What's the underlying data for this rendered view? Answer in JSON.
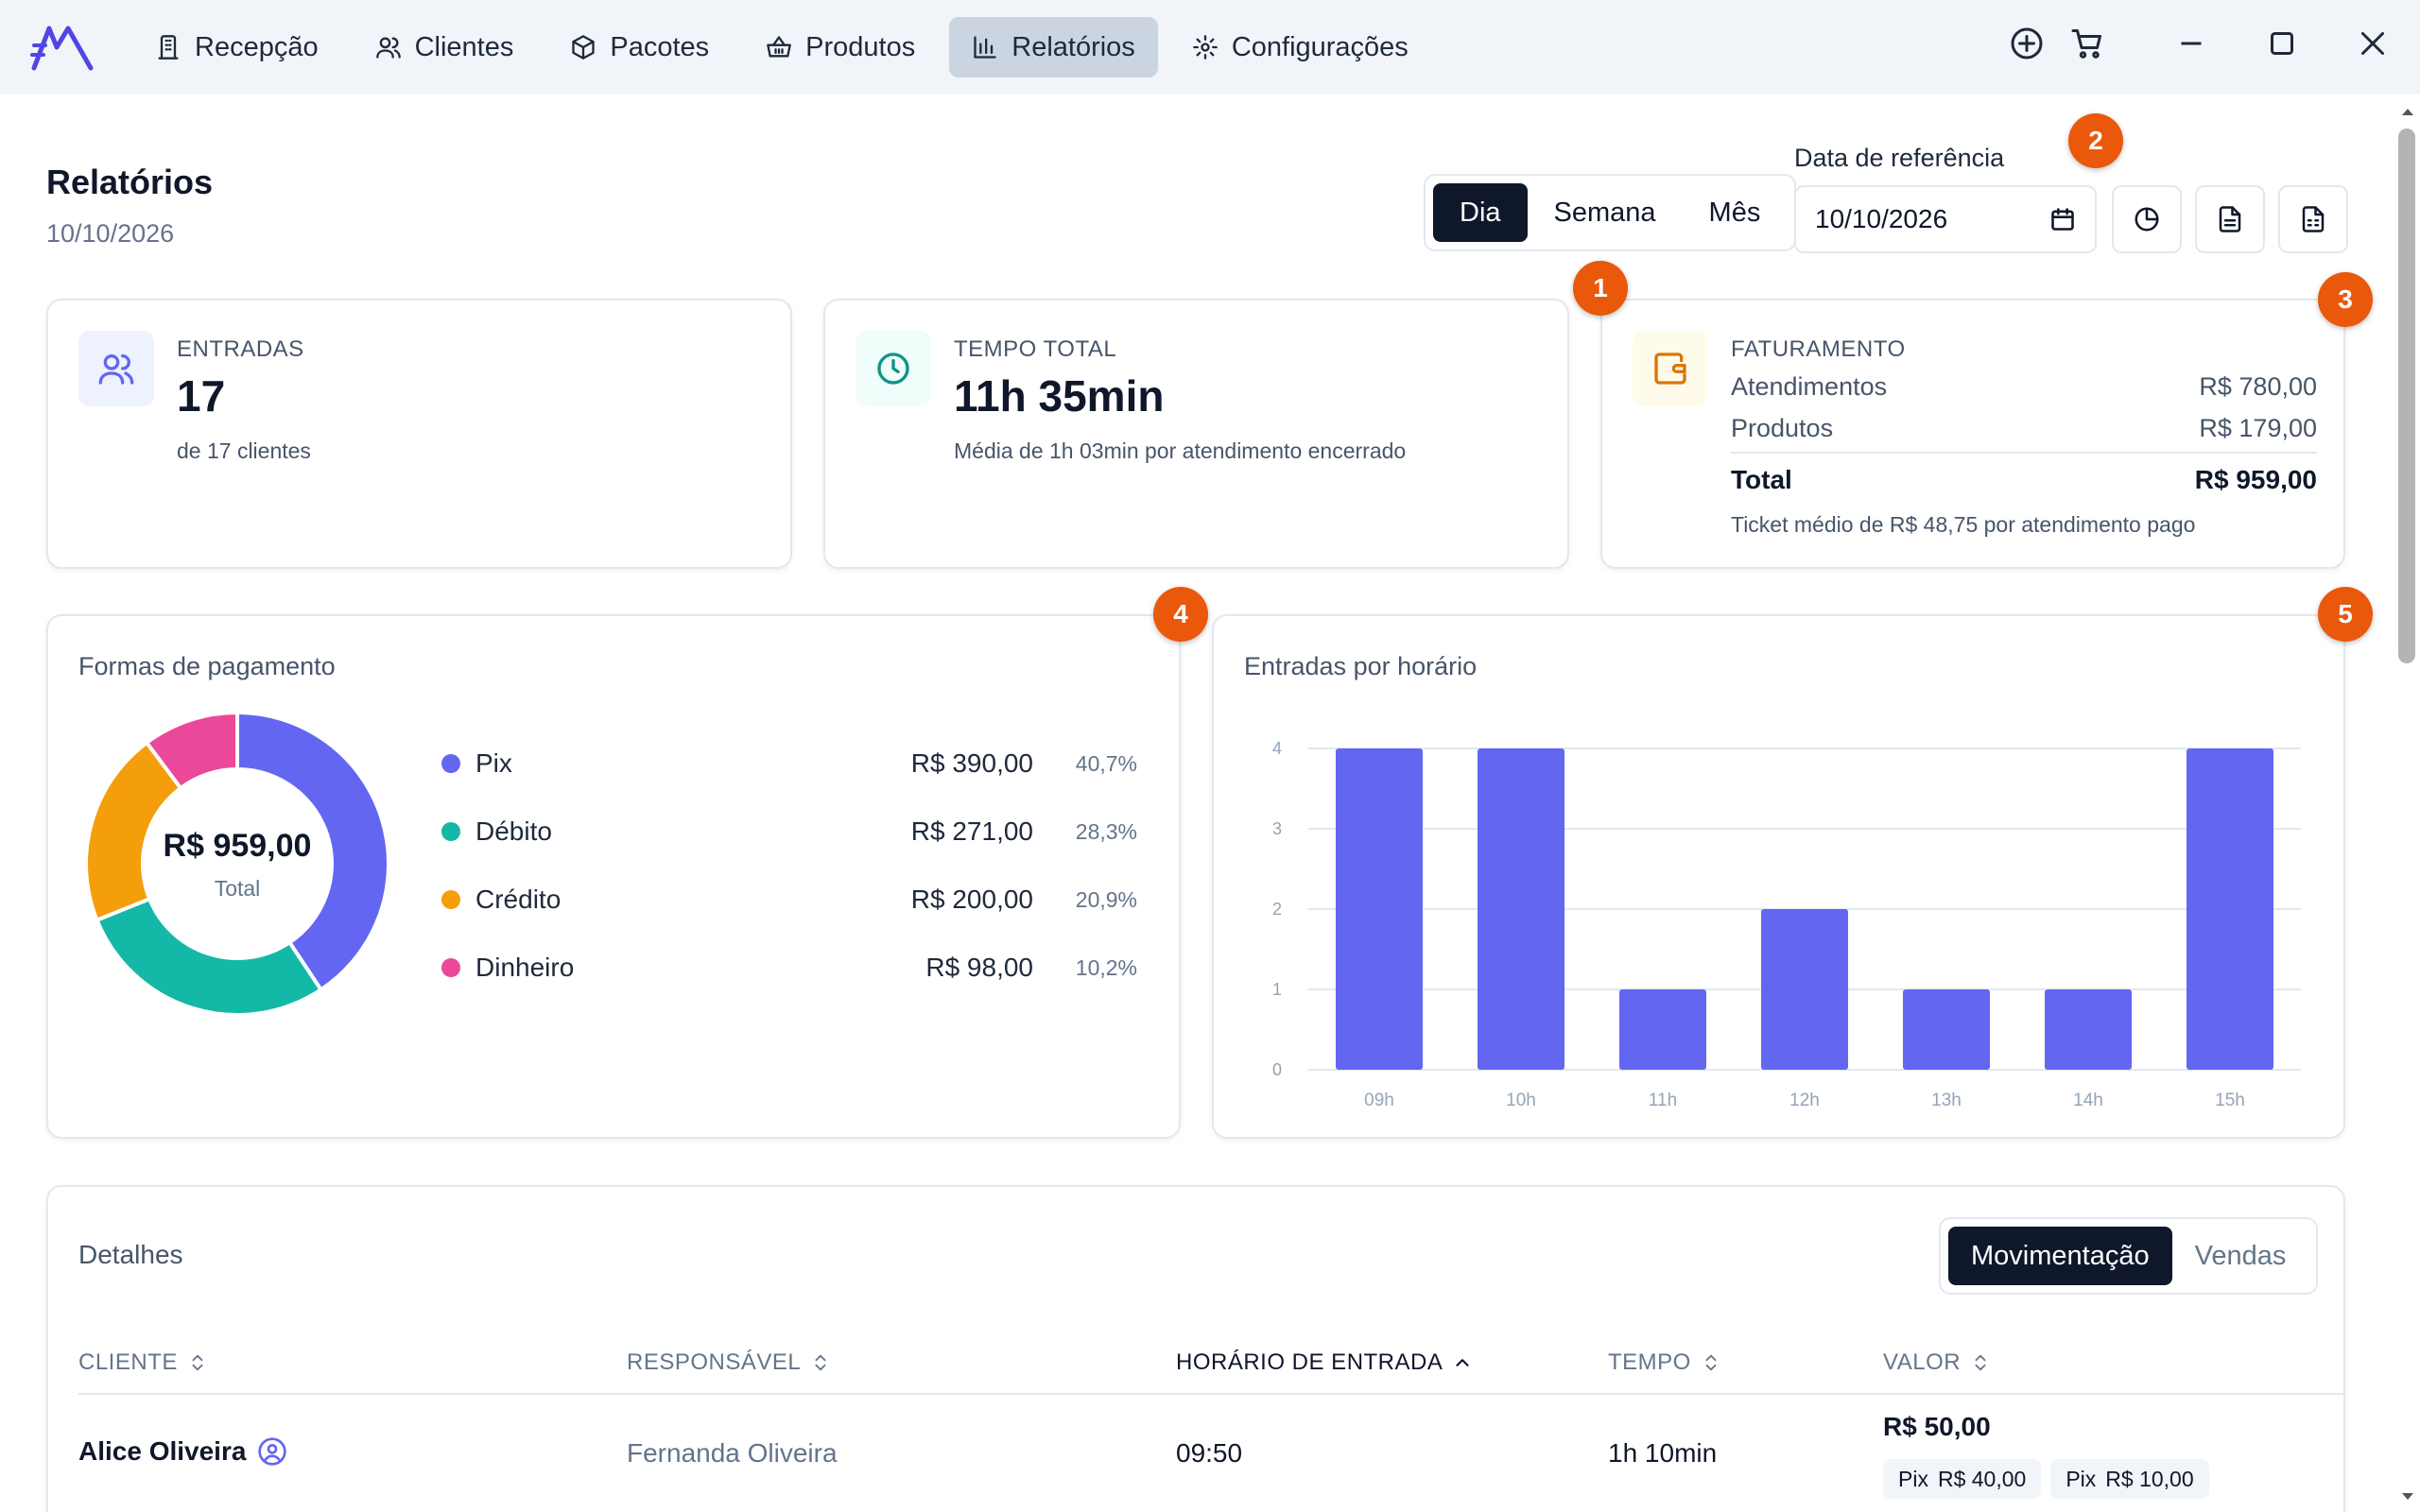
{
  "nav": {
    "items": [
      {
        "label": "Recepção",
        "icon": "building-icon"
      },
      {
        "label": "Clientes",
        "icon": "users-icon"
      },
      {
        "label": "Pacotes",
        "icon": "package-icon"
      },
      {
        "label": "Produtos",
        "icon": "basket-icon"
      },
      {
        "label": "Relatórios",
        "icon": "bar-chart-icon",
        "active": true
      },
      {
        "label": "Configurações",
        "icon": "gear-icon"
      }
    ]
  },
  "header": {
    "title": "Relatórios",
    "date": "10/10/2026",
    "period_tabs": [
      "Dia",
      "Semana",
      "Mês"
    ],
    "active_period": "Dia",
    "ref_label": "Data de referência",
    "ref_date": "10/10/2026"
  },
  "badges": [
    "1",
    "2",
    "3",
    "4",
    "5"
  ],
  "stats": {
    "entradas": {
      "label": "ENTRADAS",
      "value": "17",
      "sub": "de 17 clientes"
    },
    "tempo": {
      "label": "TEMPO TOTAL",
      "value": "11h 35min",
      "sub": "Média de 1h 03min por atendimento encerrado"
    },
    "faturamento": {
      "label": "FATURAMENTO",
      "rows": [
        {
          "label": "Atendimentos",
          "value": "R$ 780,00"
        },
        {
          "label": "Produtos",
          "value": "R$ 179,00"
        }
      ],
      "total_label": "Total",
      "total_value": "R$ 959,00",
      "sub": "Ticket médio de R$ 48,75 por atendimento pago"
    }
  },
  "payments": {
    "title": "Formas de pagamento",
    "center_value": "R$ 959,00",
    "center_label": "Total",
    "items": [
      {
        "name": "Pix",
        "value": "R$ 390,00",
        "pct": "40,7%",
        "amount": 390,
        "color": "#6366f1"
      },
      {
        "name": "Débito",
        "value": "R$ 271,00",
        "pct": "28,3%",
        "amount": 271,
        "color": "#14b8a6"
      },
      {
        "name": "Crédito",
        "value": "R$ 200,00",
        "pct": "20,9%",
        "amount": 200,
        "color": "#f59e0b"
      },
      {
        "name": "Dinheiro",
        "value": "R$ 98,00",
        "pct": "10,2%",
        "amount": 98,
        "color": "#ec4899"
      }
    ]
  },
  "chart_data": {
    "type": "bar",
    "title": "Entradas por horário",
    "categories": [
      "09h",
      "10h",
      "11h",
      "12h",
      "13h",
      "14h",
      "15h"
    ],
    "values": [
      4,
      4,
      1,
      2,
      1,
      1,
      4
    ],
    "yticks": [
      "0",
      "1",
      "2",
      "3",
      "4"
    ],
    "ylim": [
      0,
      4
    ],
    "grid": true,
    "color": "#6366f1"
  },
  "details": {
    "title": "Detalhes",
    "tabs": [
      "Movimentação",
      "Vendas"
    ],
    "active_tab": "Movimentação",
    "columns": [
      "CLIENTE",
      "RESPONSÁVEL",
      "HORÁRIO DE ENTRADA",
      "TEMPO",
      "VALOR"
    ],
    "rows": [
      {
        "cliente": "Alice Oliveira",
        "responsavel": "Fernanda Oliveira",
        "horario": "09:50",
        "tempo": "1h 10min",
        "valor": "R$ 50,00",
        "pagamentos": [
          {
            "method": "Pix",
            "value": "R$ 40,00"
          },
          {
            "method": "Pix",
            "value": "R$ 10,00"
          }
        ]
      }
    ]
  }
}
